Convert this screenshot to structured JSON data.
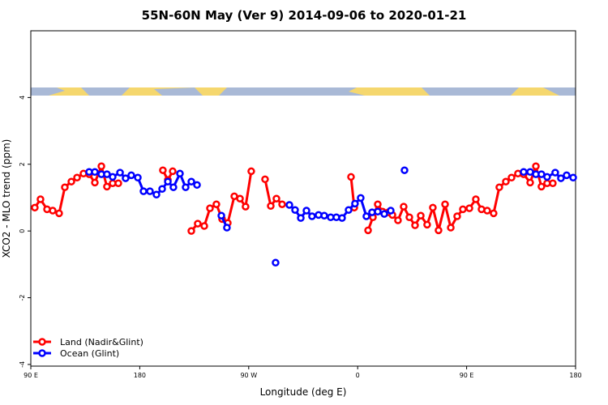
{
  "chart_data": {
    "type": "line",
    "title": "55N-60N May (Ver 9)   2014-09-06 to 2020-01-21",
    "x_label": "Longitude (deg E)",
    "y_label": "XCO2 - MLO trend (ppm)",
    "xlim": [
      90,
      540
    ],
    "ylim": [
      -4.05,
      6
    ],
    "xticks": [
      {
        "value": 90,
        "label": "90 E"
      },
      180,
      {
        "value": 270,
        "label": "90 W"
      },
      {
        "value": 360,
        "label": "0"
      },
      {
        "value": 450,
        "label": "90 E"
      },
      {
        "value": 540,
        "label": "180"
      }
    ],
    "yticks": [
      -4,
      -2,
      0,
      2,
      4
    ],
    "legend": "bottom-left",
    "series": [
      {
        "name": "Land (Nadir&Glint)",
        "color": "#ff0000",
        "x": [
          93.3,
          98.0,
          103.4,
          108.1,
          113.4,
          118.1,
          123.5,
          128.2,
          133.5,
          138.2,
          142.9,
          148.3,
          152.9,
          157.6,
          162.3,
          null,
          199.1,
          203.2,
          207.2,
          null,
          222.6,
          227.9,
          233.3,
          238.0,
          243.3,
          248.0,
          252.7,
          258.1,
          262.8,
          267.4,
          272.1,
          null,
          283.5,
          288.2,
          292.9,
          297.6,
          null,
          354.5,
          357.2,
          null,
          368.6,
          372.6,
          376.6,
          380.6,
          385.3,
          388.7,
          393.3,
          398.0,
          402.7,
          407.4,
          412.1,
          417.4,
          422.1,
          426.8,
          432.2,
          436.9,
          442.2,
          446.9,
          452.3,
          457.6,
          462.3,
          467.0,
          472.3,
          477.0,
          482.4,
          487.1,
          492.4,
          497.1,
          502.5,
          507.2,
          511.8,
          516.5,
          521.2
        ],
        "values": [
          0.7,
          0.95,
          0.65,
          0.61,
          0.53,
          1.31,
          1.48,
          1.6,
          1.72,
          1.7,
          1.45,
          1.94,
          1.33,
          1.43,
          1.43,
          null,
          1.82,
          1.53,
          1.79,
          null,
          0.0,
          0.22,
          0.15,
          0.68,
          0.8,
          0.36,
          0.24,
          1.04,
          0.97,
          0.73,
          1.79,
          null,
          1.55,
          0.75,
          0.97,
          0.8,
          null,
          1.62,
          0.7,
          null,
          0.02,
          0.41,
          0.8,
          0.58,
          0.56,
          0.48,
          0.32,
          0.73,
          0.41,
          0.17,
          0.46,
          0.19,
          0.7,
          0.02,
          0.8,
          0.1,
          0.44,
          0.65,
          0.68,
          0.95,
          0.65,
          0.61,
          0.53,
          1.31,
          1.48,
          1.6,
          1.72,
          1.7,
          1.45,
          1.94,
          1.33,
          1.43,
          1.43
        ]
      },
      {
        "name": "Ocean (Glint)",
        "color": "#0000ff",
        "x": [
          138.2,
          142.9,
          148.3,
          152.9,
          157.6,
          163.7,
          168.3,
          173.0,
          178.4,
          183.1,
          188.4,
          193.8,
          198.5,
          203.2,
          207.8,
          213.2,
          217.9,
          222.6,
          227.3,
          null,
          247.4,
          252.0,
          null,
          292.2,
          null,
          303.6,
          308.3,
          313.0,
          317.7,
          322.3,
          327.7,
          332.4,
          337.7,
          342.4,
          347.1,
          352.5,
          357.8,
          362.5,
          367.2,
          371.9,
          376.6,
          382.0,
          387.3,
          null,
          398.7,
          null,
          497.1,
          502.5,
          507.2,
          511.8,
          516.5,
          523.2,
          527.9,
          532.6,
          538.0
        ],
        "values": [
          1.77,
          1.77,
          1.7,
          1.7,
          1.62,
          1.75,
          1.58,
          1.67,
          1.6,
          1.19,
          1.19,
          1.09,
          1.26,
          1.48,
          1.31,
          1.72,
          1.31,
          1.48,
          1.38,
          null,
          0.46,
          0.1,
          null,
          -0.95,
          null,
          0.78,
          0.63,
          0.39,
          0.61,
          0.44,
          0.48,
          0.46,
          0.41,
          0.41,
          0.39,
          0.63,
          0.82,
          0.99,
          0.44,
          0.56,
          0.58,
          0.51,
          0.61,
          null,
          1.82,
          null,
          1.77,
          1.77,
          1.7,
          1.7,
          1.62,
          1.75,
          1.58,
          1.67,
          1.6
        ]
      }
    ]
  }
}
